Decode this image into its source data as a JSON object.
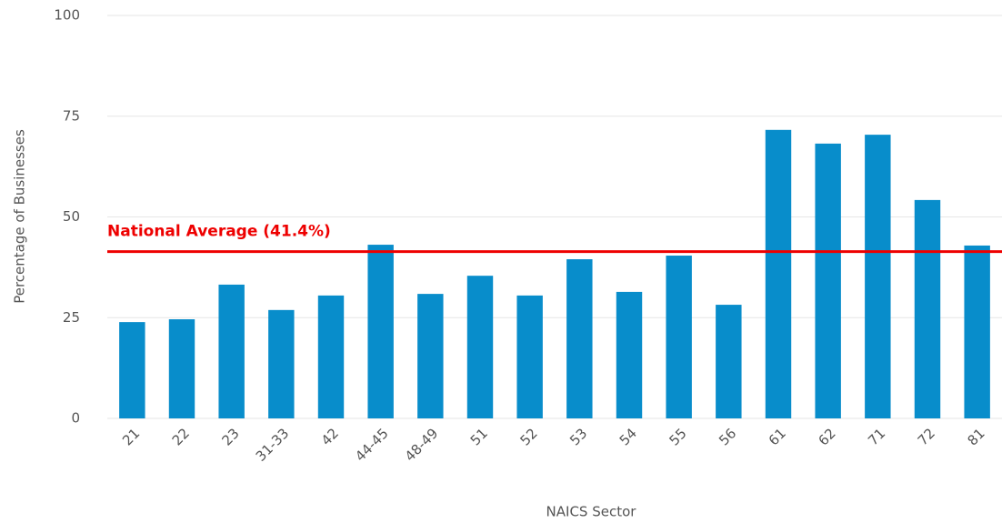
{
  "chart_data": {
    "type": "bar",
    "x_label": "NAICS Sector",
    "y_label": "Percentage of Businesses",
    "categories": [
      "21",
      "22",
      "23",
      "31-33",
      "42",
      "44-45",
      "48-49",
      "51",
      "52",
      "53",
      "54",
      "55",
      "56",
      "61",
      "62",
      "71",
      "72",
      "81"
    ],
    "values": [
      23.9,
      24.6,
      33.2,
      26.9,
      30.5,
      43.1,
      30.9,
      35.4,
      30.5,
      39.5,
      31.4,
      40.4,
      28.2,
      71.6,
      68.2,
      70.4,
      54.2,
      42.9
    ],
    "color": "#088dcb",
    "ylim": [
      0,
      100
    ],
    "yticks": [
      0,
      25,
      50,
      75,
      100
    ],
    "grid": true,
    "reference_line": {
      "value": 41.4,
      "label": "National Average (41.4%)",
      "color": "#ee0000"
    }
  }
}
